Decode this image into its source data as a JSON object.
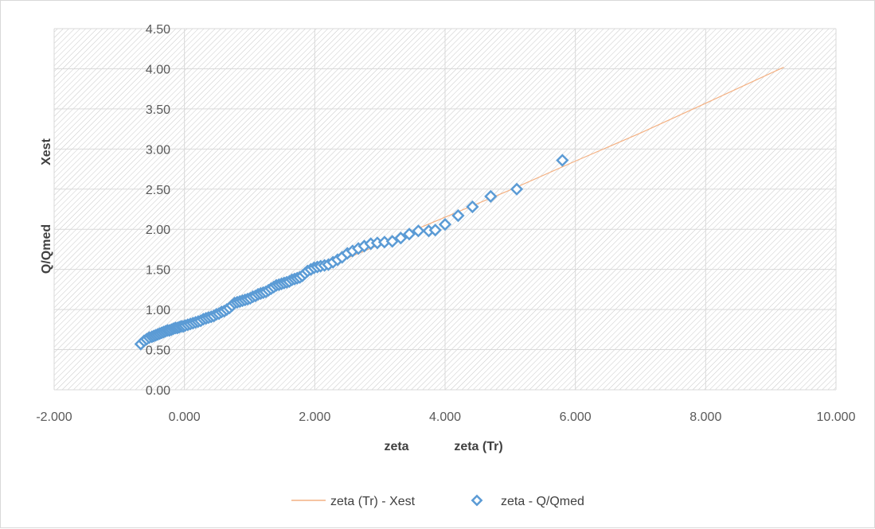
{
  "chart_data": {
    "type": "scatter",
    "xlim": [
      -2,
      10
    ],
    "ylim": [
      0,
      4.5
    ],
    "x_ticks": [
      "-2.000",
      "0.000",
      "2.000",
      "4.000",
      "6.000",
      "8.000",
      "10.000"
    ],
    "y_ticks": [
      "0.00",
      "0.50",
      "1.00",
      "1.50",
      "2.00",
      "2.50",
      "3.00",
      "3.50",
      "4.00",
      "4.50"
    ],
    "xlabels": [
      "zeta",
      "zeta (Tr)"
    ],
    "ylabels": [
      "Xest",
      "Q/Qmed"
    ],
    "grid": true,
    "legend_position": "bottom",
    "series": [
      {
        "name": "zeta (Tr) - Xest",
        "kind": "line",
        "color": "#f4b183",
        "points": [
          [
            -0.65,
            0.56
          ],
          [
            0,
            0.79
          ],
          [
            0.5,
            0.96
          ],
          [
            1.0,
            1.13
          ],
          [
            1.5,
            1.3
          ],
          [
            2.0,
            1.47
          ],
          [
            2.5,
            1.64
          ],
          [
            3.0,
            1.81
          ],
          [
            3.5,
            1.98
          ],
          [
            4.0,
            2.15
          ],
          [
            4.5,
            2.32
          ],
          [
            5.0,
            2.49
          ],
          [
            6.0,
            2.85
          ],
          [
            7.0,
            3.2
          ],
          [
            8.0,
            3.57
          ],
          [
            9.2,
            4.02
          ]
        ]
      },
      {
        "name": "zeta - Q/Qmed",
        "kind": "markers",
        "color": "#5b9bd5",
        "points": [
          [
            -0.67,
            0.57
          ],
          [
            -0.62,
            0.61
          ],
          [
            -0.58,
            0.63
          ],
          [
            -0.54,
            0.65
          ],
          [
            -0.5,
            0.66
          ],
          [
            -0.47,
            0.67
          ],
          [
            -0.44,
            0.68
          ],
          [
            -0.41,
            0.69
          ],
          [
            -0.38,
            0.7
          ],
          [
            -0.35,
            0.71
          ],
          [
            -0.32,
            0.72
          ],
          [
            -0.29,
            0.73
          ],
          [
            -0.26,
            0.74
          ],
          [
            -0.23,
            0.74
          ],
          [
            -0.2,
            0.75
          ],
          [
            -0.17,
            0.76
          ],
          [
            -0.14,
            0.77
          ],
          [
            -0.11,
            0.77
          ],
          [
            -0.08,
            0.78
          ],
          [
            -0.05,
            0.79
          ],
          [
            -0.02,
            0.79
          ],
          [
            0.01,
            0.8
          ],
          [
            0.05,
            0.81
          ],
          [
            0.09,
            0.82
          ],
          [
            0.13,
            0.83
          ],
          [
            0.17,
            0.84
          ],
          [
            0.21,
            0.85
          ],
          [
            0.25,
            0.86
          ],
          [
            0.29,
            0.88
          ],
          [
            0.33,
            0.89
          ],
          [
            0.37,
            0.9
          ],
          [
            0.41,
            0.91
          ],
          [
            0.45,
            0.92
          ],
          [
            0.49,
            0.94
          ],
          [
            0.53,
            0.95
          ],
          [
            0.57,
            0.97
          ],
          [
            0.61,
            0.98
          ],
          [
            0.65,
            1.0
          ],
          [
            0.69,
            1.02
          ],
          [
            0.73,
            1.05
          ],
          [
            0.77,
            1.08
          ],
          [
            0.81,
            1.09
          ],
          [
            0.85,
            1.1
          ],
          [
            0.89,
            1.11
          ],
          [
            0.93,
            1.12
          ],
          [
            0.97,
            1.13
          ],
          [
            1.01,
            1.14
          ],
          [
            1.05,
            1.16
          ],
          [
            1.09,
            1.17
          ],
          [
            1.13,
            1.19
          ],
          [
            1.17,
            1.2
          ],
          [
            1.21,
            1.21
          ],
          [
            1.25,
            1.22
          ],
          [
            1.29,
            1.24
          ],
          [
            1.33,
            1.26
          ],
          [
            1.37,
            1.28
          ],
          [
            1.41,
            1.3
          ],
          [
            1.45,
            1.31
          ],
          [
            1.49,
            1.32
          ],
          [
            1.53,
            1.33
          ],
          [
            1.57,
            1.34
          ],
          [
            1.61,
            1.35
          ],
          [
            1.65,
            1.37
          ],
          [
            1.69,
            1.38
          ],
          [
            1.73,
            1.39
          ],
          [
            1.77,
            1.4
          ],
          [
            1.81,
            1.42
          ],
          [
            1.85,
            1.45
          ],
          [
            1.89,
            1.48
          ],
          [
            1.94,
            1.5
          ],
          [
            1.99,
            1.52
          ],
          [
            2.04,
            1.53
          ],
          [
            2.09,
            1.54
          ],
          [
            2.15,
            1.55
          ],
          [
            2.21,
            1.56
          ],
          [
            2.28,
            1.59
          ],
          [
            2.35,
            1.62
          ],
          [
            2.42,
            1.65
          ],
          [
            2.5,
            1.7
          ],
          [
            2.58,
            1.73
          ],
          [
            2.67,
            1.76
          ],
          [
            2.76,
            1.79
          ],
          [
            2.86,
            1.82
          ],
          [
            2.96,
            1.83
          ],
          [
            3.07,
            1.84
          ],
          [
            3.19,
            1.85
          ],
          [
            3.32,
            1.89
          ],
          [
            3.45,
            1.94
          ],
          [
            3.59,
            1.98
          ],
          [
            3.75,
            1.98
          ],
          [
            3.85,
            1.99
          ],
          [
            4.0,
            2.06
          ],
          [
            4.2,
            2.17
          ],
          [
            4.42,
            2.28
          ],
          [
            4.7,
            2.41
          ],
          [
            5.1,
            2.5
          ],
          [
            5.8,
            2.86
          ]
        ]
      }
    ]
  }
}
